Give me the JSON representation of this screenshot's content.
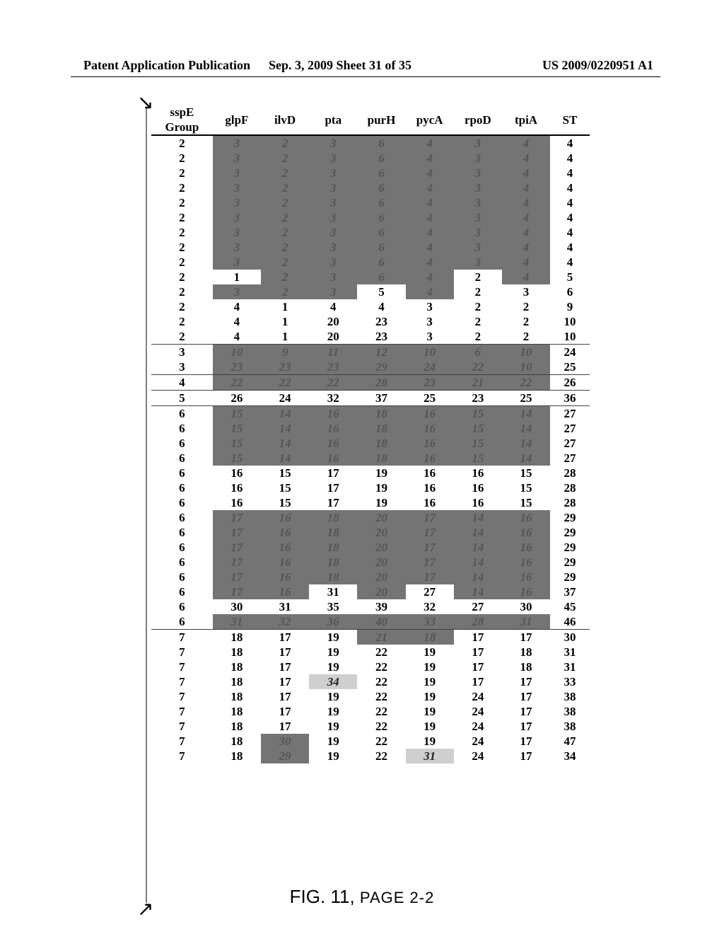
{
  "header": {
    "left": "Patent Application Publication",
    "center": "Sep. 3, 2009  Sheet 31 of 35",
    "right": "US 2009/0220951 A1"
  },
  "figure_caption": {
    "prefix": "FIG. 11,",
    "suffix": "PAGE 2-2"
  },
  "table": {
    "columns": [
      "sspE\nGroup",
      "glpF",
      "ilvD",
      "pta",
      "purH",
      "pycA",
      "rpoD",
      "tpiA",
      "ST"
    ],
    "col_widths": [
      "14%",
      "11%",
      "11%",
      "11%",
      "11%",
      "11%",
      "11%",
      "11%",
      "9%"
    ],
    "header_fontsize": 17,
    "body_fontsize": 17,
    "background_color": "#ffffff",
    "dark_cell_bg": "#6d6d6d",
    "light_cell_bg": "#cfcfcf",
    "rows": [
      {
        "g": "2",
        "v": [
          3,
          2,
          3,
          6,
          4,
          3,
          4
        ],
        "st": 4,
        "shade": "dark"
      },
      {
        "g": "2",
        "v": [
          3,
          2,
          3,
          6,
          4,
          3,
          4
        ],
        "st": 4,
        "shade": "dark"
      },
      {
        "g": "2",
        "v": [
          3,
          2,
          3,
          6,
          4,
          3,
          4
        ],
        "st": 4,
        "shade": "dark"
      },
      {
        "g": "2",
        "v": [
          3,
          2,
          3,
          6,
          4,
          3,
          4
        ],
        "st": 4,
        "shade": "dark"
      },
      {
        "g": "2",
        "v": [
          3,
          2,
          3,
          6,
          4,
          3,
          4
        ],
        "st": 4,
        "shade": "dark"
      },
      {
        "g": "2",
        "v": [
          3,
          2,
          3,
          6,
          4,
          3,
          4
        ],
        "st": 4,
        "shade": "dark"
      },
      {
        "g": "2",
        "v": [
          3,
          2,
          3,
          6,
          4,
          3,
          4
        ],
        "st": 4,
        "shade": "dark"
      },
      {
        "g": "2",
        "v": [
          3,
          2,
          3,
          6,
          4,
          3,
          4
        ],
        "st": 4,
        "shade": "dark"
      },
      {
        "g": "2",
        "v": [
          3,
          2,
          3,
          6,
          4,
          3,
          4
        ],
        "st": 4,
        "shade": "dark"
      },
      {
        "g": "2",
        "v": [
          1,
          2,
          3,
          6,
          4,
          2,
          4
        ],
        "st": 5,
        "shade_idx": {
          "0": "plain",
          "5": "plain"
        },
        "default_shade": "dark"
      },
      {
        "g": "2",
        "v": [
          3,
          2,
          3,
          5,
          4,
          2,
          3
        ],
        "st": 6,
        "shade_idx": {
          "3": "plain",
          "5": "plain",
          "6": "plain"
        },
        "default_shade": "dark"
      },
      {
        "g": "2",
        "v": [
          4,
          1,
          4,
          4,
          3,
          2,
          2
        ],
        "st": 9,
        "shade": "plain"
      },
      {
        "g": "2",
        "v": [
          4,
          1,
          20,
          23,
          3,
          2,
          2
        ],
        "st": 10,
        "shade": "plain"
      },
      {
        "g": "2",
        "v": [
          4,
          1,
          20,
          23,
          3,
          2,
          2
        ],
        "st": 10,
        "shade": "plain"
      },
      {
        "rule": "thin"
      },
      {
        "g": "3",
        "v": [
          10,
          9,
          11,
          12,
          10,
          6,
          10
        ],
        "st": 24,
        "shade": "dark"
      },
      {
        "g": "3",
        "v": [
          23,
          23,
          23,
          29,
          24,
          22,
          10
        ],
        "st": 25,
        "shade": "dark"
      },
      {
        "rule": "thin"
      },
      {
        "g": "4",
        "v": [
          22,
          22,
          22,
          28,
          23,
          21,
          22
        ],
        "st": 26,
        "shade": "dark"
      },
      {
        "rule": "thin"
      },
      {
        "g": "5",
        "v": [
          26,
          24,
          32,
          37,
          25,
          23,
          25
        ],
        "st": 36,
        "shade": "plain"
      },
      {
        "rule": "thin"
      },
      {
        "g": "6",
        "v": [
          15,
          14,
          16,
          18,
          16,
          15,
          14
        ],
        "st": 27,
        "shade": "dark"
      },
      {
        "g": "6",
        "v": [
          15,
          14,
          16,
          18,
          16,
          15,
          14
        ],
        "st": 27,
        "shade": "dark"
      },
      {
        "g": "6",
        "v": [
          15,
          14,
          16,
          18,
          16,
          15,
          14
        ],
        "st": 27,
        "shade": "dark"
      },
      {
        "g": "6",
        "v": [
          15,
          14,
          16,
          18,
          16,
          15,
          14
        ],
        "st": 27,
        "shade": "dark"
      },
      {
        "g": "6",
        "v": [
          16,
          15,
          17,
          19,
          16,
          16,
          15
        ],
        "st": 28,
        "shade": "plain"
      },
      {
        "g": "6",
        "v": [
          16,
          15,
          17,
          19,
          16,
          16,
          15
        ],
        "st": 28,
        "shade": "plain"
      },
      {
        "g": "6",
        "v": [
          16,
          15,
          17,
          19,
          16,
          16,
          15
        ],
        "st": 28,
        "shade": "plain"
      },
      {
        "g": "6",
        "v": [
          17,
          16,
          18,
          20,
          17,
          14,
          16
        ],
        "st": 29,
        "shade": "dark"
      },
      {
        "g": "6",
        "v": [
          17,
          16,
          18,
          20,
          17,
          14,
          16
        ],
        "st": 29,
        "shade": "dark"
      },
      {
        "g": "6",
        "v": [
          17,
          16,
          18,
          20,
          17,
          14,
          16
        ],
        "st": 29,
        "shade": "dark"
      },
      {
        "g": "6",
        "v": [
          17,
          16,
          18,
          20,
          17,
          14,
          16
        ],
        "st": 29,
        "shade": "dark"
      },
      {
        "g": "6",
        "v": [
          17,
          16,
          18,
          20,
          17,
          14,
          16
        ],
        "st": 29,
        "shade": "dark"
      },
      {
        "g": "6",
        "v": [
          17,
          16,
          31,
          20,
          27,
          14,
          16
        ],
        "st": 37,
        "shade_idx": {
          "2": "plain",
          "4": "plain"
        },
        "default_shade": "dark"
      },
      {
        "g": "6",
        "v": [
          30,
          31,
          35,
          39,
          32,
          27,
          30
        ],
        "st": 45,
        "shade": "plain"
      },
      {
        "g": "6",
        "v": [
          31,
          32,
          36,
          40,
          33,
          28,
          31
        ],
        "st": 46,
        "shade": "dark"
      },
      {
        "rule": "thin"
      },
      {
        "g": "7",
        "v": [
          18,
          17,
          19,
          21,
          18,
          17,
          17
        ],
        "st": 30,
        "shade_idx": {
          "3": "dark",
          "4": "dark"
        },
        "default_shade": "plain"
      },
      {
        "g": "7",
        "v": [
          18,
          17,
          19,
          22,
          19,
          17,
          18
        ],
        "st": 31,
        "shade": "plain"
      },
      {
        "g": "7",
        "v": [
          18,
          17,
          19,
          22,
          19,
          17,
          18
        ],
        "st": 31,
        "shade": "plain"
      },
      {
        "g": "7",
        "v": [
          18,
          17,
          34,
          22,
          19,
          17,
          17
        ],
        "st": 33,
        "shade_idx": {
          "2": "light"
        },
        "default_shade": "plain"
      },
      {
        "g": "7",
        "v": [
          18,
          17,
          19,
          22,
          19,
          24,
          17
        ],
        "st": 38,
        "shade": "plain"
      },
      {
        "g": "7",
        "v": [
          18,
          17,
          19,
          22,
          19,
          24,
          17
        ],
        "st": 38,
        "shade": "plain"
      },
      {
        "g": "7",
        "v": [
          18,
          17,
          19,
          22,
          19,
          24,
          17
        ],
        "st": 38,
        "shade": "plain"
      },
      {
        "g": "7",
        "v": [
          18,
          30,
          19,
          22,
          19,
          24,
          17
        ],
        "st": 47,
        "shade_idx": {
          "1": "dark"
        },
        "default_shade": "plain"
      },
      {
        "g": "7",
        "v": [
          18,
          29,
          19,
          22,
          31,
          24,
          17
        ],
        "st": 34,
        "shade_idx": {
          "1": "dark",
          "4": "light"
        },
        "default_shade": "plain"
      }
    ]
  }
}
